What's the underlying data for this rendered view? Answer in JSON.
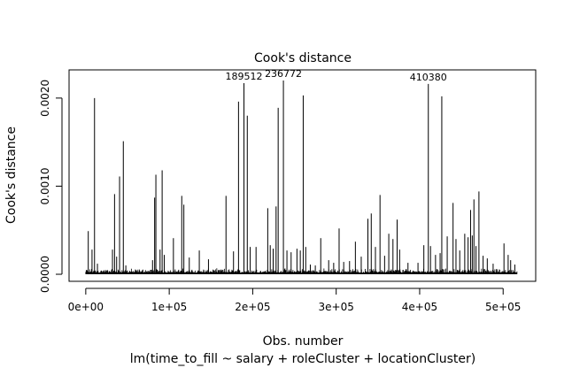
{
  "chart_data": {
    "type": "bar",
    "title": "Cook's distance",
    "xlabel": "Obs. number",
    "ylabel": "Cook's distance",
    "subtitle": "lm(time_to_fill ~ salary + roleCluster + locationCluster)",
    "xlim": [
      -20000,
      539000
    ],
    "ylim": [
      -8e-05,
      0.00232
    ],
    "x_ticks": [
      {
        "value": 0,
        "label": "0e+00"
      },
      {
        "value": 100000,
        "label": "1e+05"
      },
      {
        "value": 200000,
        "label": "2e+05"
      },
      {
        "value": 300000,
        "label": "3e+05"
      },
      {
        "value": 400000,
        "label": "4e+05"
      },
      {
        "value": 500000,
        "label": "5e+05"
      }
    ],
    "y_ticks": [
      {
        "value": 0,
        "label": "0.0000"
      },
      {
        "value": 0.001,
        "label": "0.0010"
      },
      {
        "value": 0.002,
        "label": "0.0020"
      }
    ],
    "n_obs": 517000,
    "baseline_max": 7e-05,
    "spikes": [
      [
        3000,
        0.00049
      ],
      [
        7500,
        0.00028
      ],
      [
        10500,
        0.002
      ],
      [
        14000,
        0.00012
      ],
      [
        32000,
        0.00028
      ],
      [
        34500,
        0.00091
      ],
      [
        37000,
        0.0002
      ],
      [
        40500,
        0.00111
      ],
      [
        45000,
        0.00151
      ],
      [
        48000,
        0.0001
      ],
      [
        80000,
        0.00016
      ],
      [
        82500,
        0.00087
      ],
      [
        84000,
        0.00113
      ],
      [
        89000,
        0.00028
      ],
      [
        91500,
        0.00118
      ],
      [
        94000,
        0.00022
      ],
      [
        105000,
        0.00041
      ],
      [
        115000,
        0.00089
      ],
      [
        117500,
        0.00079
      ],
      [
        124000,
        0.00019
      ],
      [
        136000,
        0.00027
      ],
      [
        147000,
        0.00017
      ],
      [
        168000,
        0.00089
      ],
      [
        177000,
        0.00026
      ],
      [
        183000,
        0.00196
      ],
      [
        189512,
        0.00217
      ],
      [
        193500,
        0.0018
      ],
      [
        197000,
        0.00031
      ],
      [
        204000,
        0.00031
      ],
      [
        218000,
        0.00075
      ],
      [
        221000,
        0.00033
      ],
      [
        224500,
        0.00029
      ],
      [
        228000,
        0.00077
      ],
      [
        230500,
        0.00189
      ],
      [
        236772,
        0.0022
      ],
      [
        241000,
        0.00027
      ],
      [
        246000,
        0.00025
      ],
      [
        253000,
        0.00029
      ],
      [
        257000,
        0.00027
      ],
      [
        260500,
        0.00203
      ],
      [
        263500,
        0.00031
      ],
      [
        269000,
        0.00011
      ],
      [
        275000,
        0.0001
      ],
      [
        281500,
        0.00041
      ],
      [
        291000,
        0.00016
      ],
      [
        297000,
        0.00013
      ],
      [
        303500,
        0.00052
      ],
      [
        309000,
        0.00014
      ],
      [
        316000,
        0.00015
      ],
      [
        323000,
        0.00037
      ],
      [
        330000,
        0.0002
      ],
      [
        338000,
        0.00063
      ],
      [
        342000,
        0.00069
      ],
      [
        347000,
        0.00031
      ],
      [
        352500,
        0.0009
      ],
      [
        358000,
        0.00021
      ],
      [
        363000,
        0.00046
      ],
      [
        368000,
        0.0004
      ],
      [
        373000,
        0.00062
      ],
      [
        376000,
        0.00028
      ],
      [
        386000,
        0.00013
      ],
      [
        398000,
        0.00013
      ],
      [
        405000,
        0.00033
      ],
      [
        410380,
        0.00216
      ],
      [
        413000,
        0.00032
      ],
      [
        419000,
        0.00022
      ],
      [
        424500,
        0.00024
      ],
      [
        426500,
        0.00202
      ],
      [
        433000,
        0.00043
      ],
      [
        440000,
        0.00081
      ],
      [
        443500,
        0.0004
      ],
      [
        448000,
        0.00027
      ],
      [
        454000,
        0.00046
      ],
      [
        458000,
        0.00042
      ],
      [
        461000,
        0.00073
      ],
      [
        463000,
        0.00044
      ],
      [
        465000,
        0.00085
      ],
      [
        467500,
        0.00032
      ],
      [
        471000,
        0.00094
      ],
      [
        476000,
        0.00021
      ],
      [
        481000,
        0.00018
      ],
      [
        488000,
        0.00012
      ],
      [
        501000,
        0.00035
      ],
      [
        506000,
        0.00022
      ],
      [
        509000,
        0.00016
      ],
      [
        514000,
        0.00011
      ]
    ],
    "labeled_points": [
      {
        "x": 189512,
        "y": 0.00217,
        "label": "189512"
      },
      {
        "x": 236772,
        "y": 0.0022,
        "label": "236772"
      },
      {
        "x": 410380,
        "y": 0.00216,
        "label": "410380"
      }
    ],
    "grid": false,
    "legend": "none",
    "line_color": "#000000"
  }
}
